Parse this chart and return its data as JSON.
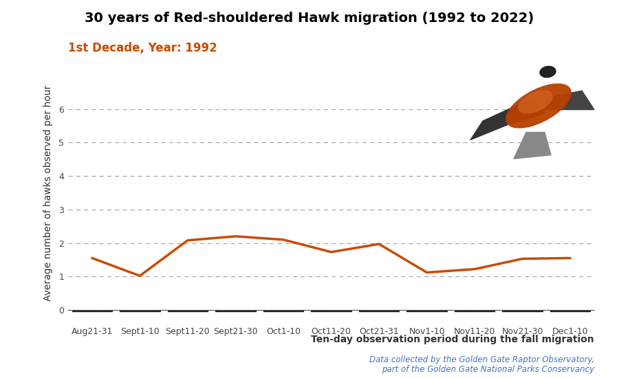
{
  "title": "30 years of Red-shouldered Hawk migration (1992 to 2022)",
  "subtitle": "1st Decade, Year: 1992",
  "subtitle_color": "#C84B00",
  "title_color": "#000000",
  "xlabel": "Ten-day observation period during the fall migration",
  "ylabel": "Average number of hawks observed per hour",
  "source_line1": "Data collected by the Golden Gate Raptor Observatory,",
  "source_line2": "part of the Golden Gate National Parks Conservancy",
  "categories": [
    "Aug21-31",
    "Sept1-10",
    "Sept11-20",
    "Sept21-30",
    "Oct1-10",
    "Oct11-20",
    "Oct21-31",
    "Nov1-10",
    "Nov11-20",
    "Nov21-30",
    "Dec1-10"
  ],
  "values": [
    1.55,
    1.02,
    2.08,
    2.2,
    2.1,
    1.73,
    1.97,
    1.12,
    1.22,
    1.53,
    1.55
  ],
  "line_color": "#C84B00",
  "ylim": [
    0,
    7
  ],
  "yticks": [
    0,
    1,
    2,
    3,
    4,
    5,
    6
  ],
  "grid_color": "#aaaaaa",
  "background_color": "#ffffff",
  "title_fontsize": 14,
  "subtitle_fontsize": 12,
  "ylabel_fontsize": 10,
  "xlabel_fontsize": 10,
  "tick_fontsize": 9,
  "source_fontsize": 8.5
}
